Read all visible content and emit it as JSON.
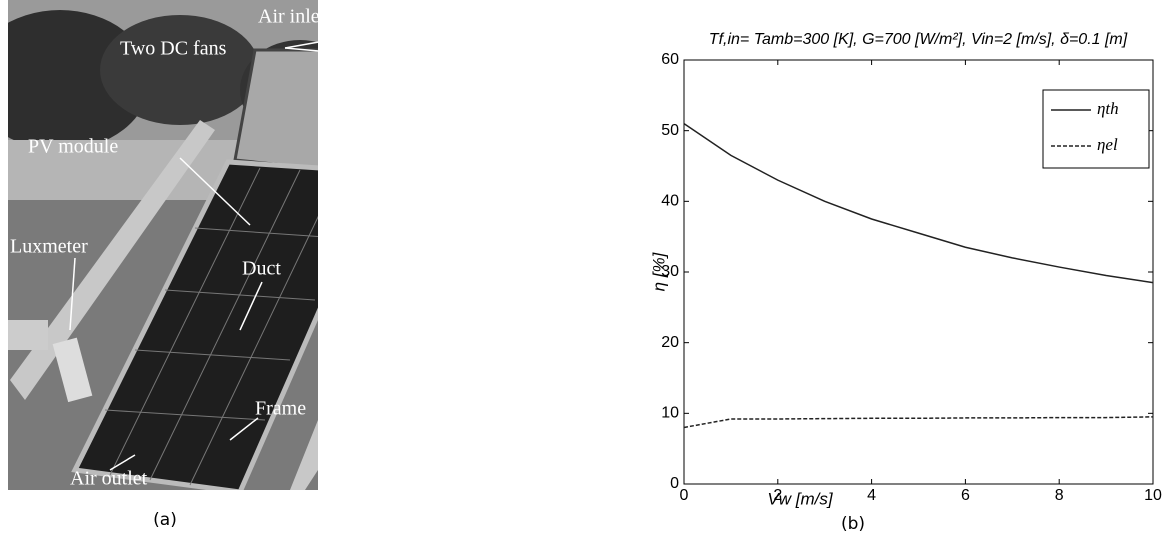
{
  "figure_a": {
    "labels": [
      "Air inlet",
      "Two DC fans",
      "PV module",
      "Luxmeter",
      "Duct",
      "Frame",
      "Air outlet"
    ],
    "caption": "(a)"
  },
  "caption_b": "(b)",
  "chart_data": {
    "type": "line",
    "title": "Tf,in= Tamb=300 [K], G=700 [W/m²], Vin=2 [m/s], δ=0.1 [m]",
    "x_label": "Vw [m/s]",
    "y_label": "η [%]",
    "x": [
      0,
      1,
      2,
      3,
      4,
      5,
      6,
      7,
      8,
      9,
      10
    ],
    "series": [
      {
        "name": "ηth",
        "color": "#222222",
        "dash": false,
        "values": [
          51,
          46.5,
          43,
          40,
          37.5,
          35.5,
          33.5,
          32,
          30.7,
          29.5,
          28.5
        ]
      },
      {
        "name": "ηel",
        "color": "#222222",
        "dash": true,
        "values": [
          8,
          9.2,
          9.2,
          9.25,
          9.3,
          9.3,
          9.35,
          9.35,
          9.4,
          9.4,
          9.5
        ]
      }
    ],
    "xlim": [
      0,
      10
    ],
    "xticks": [
      0,
      2,
      4,
      6,
      8,
      10
    ],
    "ylim": [
      0,
      60
    ],
    "yticks": [
      0,
      10,
      20,
      30,
      40,
      50,
      60
    ],
    "grid": false,
    "legend": "upper-right"
  }
}
